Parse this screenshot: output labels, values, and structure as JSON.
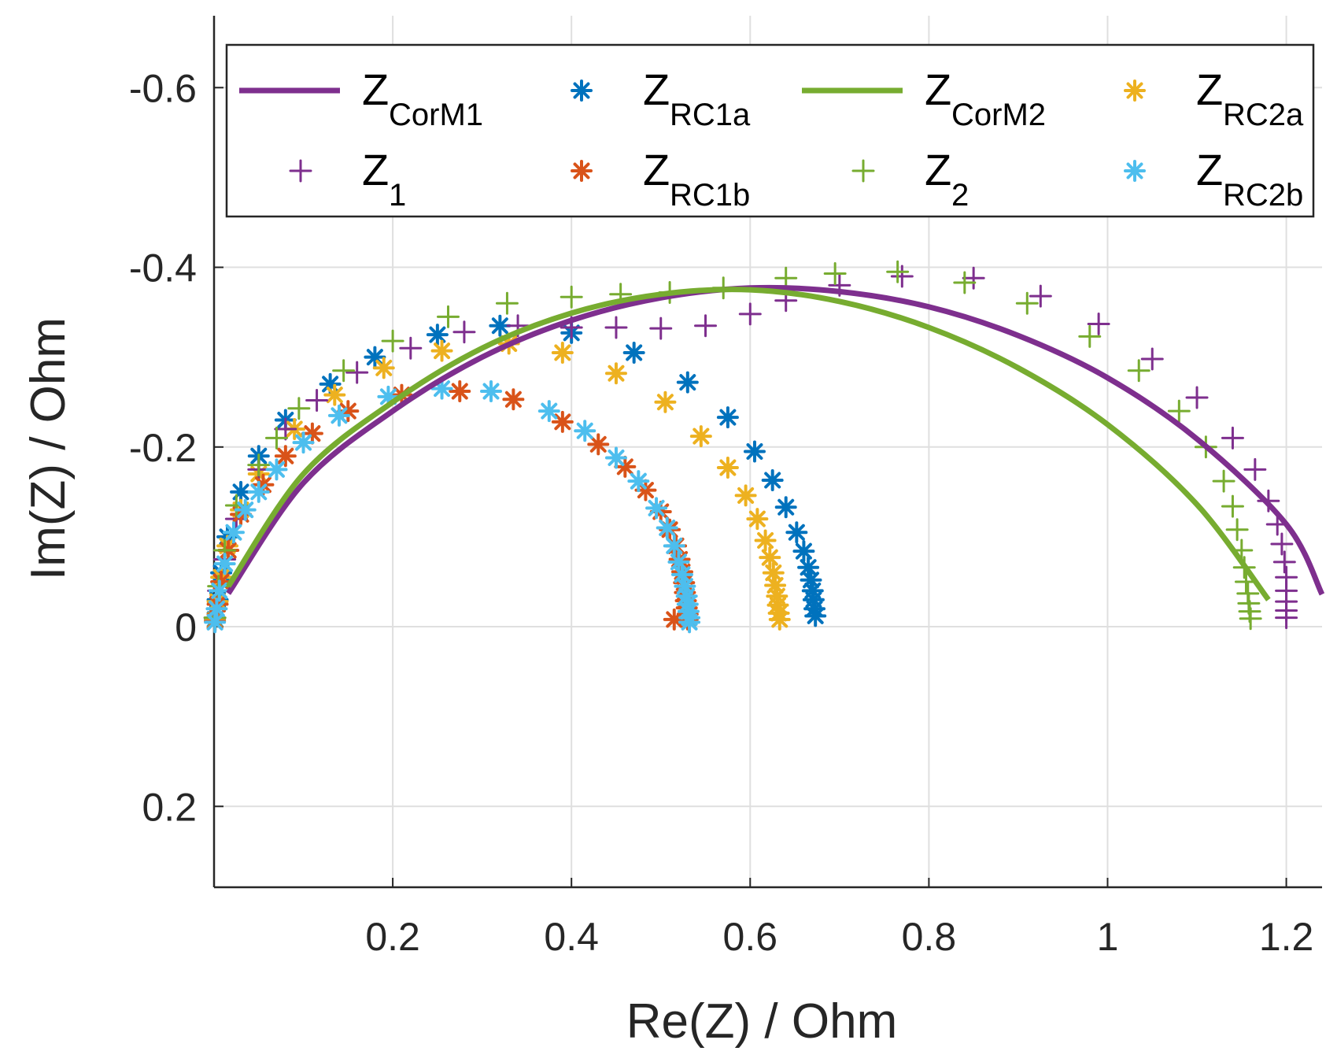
{
  "chart_data": {
    "type": "scatter",
    "xlabel": "Re(Z) / Ohm",
    "ylabel": "Im(Z) / Ohm",
    "xlim": [
      0,
      1.24
    ],
    "ylim": [
      -0.68,
      0.29
    ],
    "y_reversed": true,
    "grid": true,
    "legend_position": "top",
    "x_ticks": [
      {
        "value": 0.2,
        "label": "0.2"
      },
      {
        "value": 0.4,
        "label": "0.4"
      },
      {
        "value": 0.6,
        "label": "0.6"
      },
      {
        "value": 0.8,
        "label": "0.8"
      },
      {
        "value": 1.0,
        "label": "1"
      },
      {
        "value": 1.2,
        "label": "1.2"
      }
    ],
    "y_ticks": [
      {
        "value": -0.6,
        "label": "-0.6"
      },
      {
        "value": -0.4,
        "label": "-0.4"
      },
      {
        "value": -0.2,
        "label": "-0.2"
      },
      {
        "value": 0.0,
        "label": "0"
      },
      {
        "value": 0.2,
        "label": "0.2"
      }
    ],
    "series": [
      {
        "key": "CorM1",
        "legend_main": "Z",
        "legend_sub": "CorM1",
        "style": "line",
        "color": "#7E2F8E",
        "points": [
          [
            0.016,
            -0.037
          ],
          [
            0.1,
            -0.16
          ],
          [
            0.2,
            -0.24
          ],
          [
            0.3,
            -0.3
          ],
          [
            0.4,
            -0.341
          ],
          [
            0.5,
            -0.366
          ],
          [
            0.6,
            -0.377
          ],
          [
            0.7,
            -0.373
          ],
          [
            0.8,
            -0.356
          ],
          [
            0.9,
            -0.324
          ],
          [
            1.0,
            -0.277
          ],
          [
            1.1,
            -0.209
          ],
          [
            1.2,
            -0.114
          ],
          [
            1.24,
            -0.036
          ]
        ]
      },
      {
        "key": "RC1a",
        "legend_main": "Z",
        "legend_sub": "RC1a",
        "style": "asterisk",
        "color": "#0072BD",
        "points": [
          [
            0.001,
            -0.008
          ],
          [
            0.004,
            -0.03
          ],
          [
            0.008,
            -0.06
          ],
          [
            0.015,
            -0.1
          ],
          [
            0.03,
            -0.15
          ],
          [
            0.05,
            -0.19
          ],
          [
            0.08,
            -0.23
          ],
          [
            0.13,
            -0.27
          ],
          [
            0.18,
            -0.3
          ],
          [
            0.25,
            -0.325
          ],
          [
            0.32,
            -0.335
          ],
          [
            0.4,
            -0.327
          ],
          [
            0.47,
            -0.305
          ],
          [
            0.53,
            -0.272
          ],
          [
            0.575,
            -0.233
          ],
          [
            0.605,
            -0.195
          ],
          [
            0.625,
            -0.163
          ],
          [
            0.64,
            -0.133
          ],
          [
            0.652,
            -0.105
          ],
          [
            0.66,
            -0.084
          ],
          [
            0.665,
            -0.066
          ],
          [
            0.668,
            -0.052
          ],
          [
            0.67,
            -0.04
          ],
          [
            0.671,
            -0.03
          ],
          [
            0.672,
            -0.02
          ],
          [
            0.673,
            -0.012
          ]
        ]
      },
      {
        "key": "CorM2",
        "legend_main": "Z",
        "legend_sub": "CorM2",
        "style": "line",
        "color": "#77AC30",
        "points": [
          [
            0.016,
            -0.045
          ],
          [
            0.1,
            -0.17
          ],
          [
            0.2,
            -0.25
          ],
          [
            0.3,
            -0.31
          ],
          [
            0.4,
            -0.349
          ],
          [
            0.5,
            -0.37
          ],
          [
            0.6,
            -0.375
          ],
          [
            0.7,
            -0.362
          ],
          [
            0.8,
            -0.333
          ],
          [
            0.9,
            -0.288
          ],
          [
            1.0,
            -0.225
          ],
          [
            1.1,
            -0.136
          ],
          [
            1.18,
            -0.03
          ]
        ]
      },
      {
        "key": "RC2a",
        "legend_main": "Z",
        "legend_sub": "RC2a",
        "style": "asterisk",
        "color": "#EDB120",
        "points": [
          [
            0.001,
            -0.007
          ],
          [
            0.004,
            -0.028
          ],
          [
            0.008,
            -0.055
          ],
          [
            0.015,
            -0.09
          ],
          [
            0.03,
            -0.13
          ],
          [
            0.05,
            -0.17
          ],
          [
            0.09,
            -0.22
          ],
          [
            0.135,
            -0.258
          ],
          [
            0.19,
            -0.288
          ],
          [
            0.255,
            -0.307
          ],
          [
            0.33,
            -0.315
          ],
          [
            0.39,
            -0.305
          ],
          [
            0.45,
            -0.282
          ],
          [
            0.505,
            -0.25
          ],
          [
            0.545,
            -0.212
          ],
          [
            0.575,
            -0.177
          ],
          [
            0.595,
            -0.146
          ],
          [
            0.608,
            -0.12
          ],
          [
            0.617,
            -0.096
          ],
          [
            0.622,
            -0.077
          ],
          [
            0.626,
            -0.06
          ],
          [
            0.628,
            -0.046
          ],
          [
            0.63,
            -0.034
          ],
          [
            0.631,
            -0.024
          ],
          [
            0.632,
            -0.015
          ],
          [
            0.633,
            -0.008
          ]
        ]
      },
      {
        "key": "Z1",
        "legend_main": "Z",
        "legend_sub": "1",
        "style": "plus",
        "color": "#7E2F8E",
        "points": [
          [
            0.001,
            -0.01
          ],
          [
            0.005,
            -0.04
          ],
          [
            0.012,
            -0.075
          ],
          [
            0.025,
            -0.12
          ],
          [
            0.05,
            -0.175
          ],
          [
            0.08,
            -0.22
          ],
          [
            0.115,
            -0.252
          ],
          [
            0.16,
            -0.283
          ],
          [
            0.22,
            -0.31
          ],
          [
            0.28,
            -0.328
          ],
          [
            0.34,
            -0.335
          ],
          [
            0.4,
            -0.333
          ],
          [
            0.45,
            -0.333
          ],
          [
            0.5,
            -0.332
          ],
          [
            0.55,
            -0.335
          ],
          [
            0.6,
            -0.348
          ],
          [
            0.64,
            -0.363
          ],
          [
            0.7,
            -0.38
          ],
          [
            0.77,
            -0.39
          ],
          [
            0.85,
            -0.388
          ],
          [
            0.925,
            -0.368
          ],
          [
            0.99,
            -0.337
          ],
          [
            1.05,
            -0.298
          ],
          [
            1.1,
            -0.255
          ],
          [
            1.14,
            -0.21
          ],
          [
            1.165,
            -0.175
          ],
          [
            1.18,
            -0.14
          ],
          [
            1.19,
            -0.114
          ],
          [
            1.195,
            -0.092
          ],
          [
            1.198,
            -0.072
          ],
          [
            1.2,
            -0.055
          ],
          [
            1.2,
            -0.04
          ],
          [
            1.2,
            -0.028
          ],
          [
            1.2,
            -0.018
          ],
          [
            1.2,
            -0.01
          ]
        ]
      },
      {
        "key": "RC1b",
        "legend_main": "Z",
        "legend_sub": "RC1b",
        "style": "asterisk",
        "color": "#D95319",
        "points": [
          [
            0.001,
            -0.006
          ],
          [
            0.004,
            -0.025
          ],
          [
            0.008,
            -0.05
          ],
          [
            0.016,
            -0.085
          ],
          [
            0.03,
            -0.125
          ],
          [
            0.055,
            -0.158
          ],
          [
            0.08,
            -0.19
          ],
          [
            0.11,
            -0.215
          ],
          [
            0.15,
            -0.24
          ],
          [
            0.21,
            -0.258
          ],
          [
            0.275,
            -0.262
          ],
          [
            0.335,
            -0.253
          ],
          [
            0.39,
            -0.228
          ],
          [
            0.43,
            -0.203
          ],
          [
            0.46,
            -0.178
          ],
          [
            0.483,
            -0.152
          ],
          [
            0.5,
            -0.128
          ],
          [
            0.51,
            -0.108
          ],
          [
            0.517,
            -0.09
          ],
          [
            0.521,
            -0.075
          ],
          [
            0.524,
            -0.061
          ],
          [
            0.526,
            -0.049
          ],
          [
            0.527,
            -0.038
          ],
          [
            0.528,
            -0.029
          ],
          [
            0.529,
            -0.021
          ],
          [
            0.53,
            -0.014
          ],
          [
            0.53,
            -0.008
          ],
          [
            0.515,
            -0.008
          ]
        ]
      },
      {
        "key": "Z2",
        "legend_main": "Z",
        "legend_sub": "2",
        "style": "plus",
        "color": "#77AC30",
        "points": [
          [
            0.001,
            -0.01
          ],
          [
            0.005,
            -0.045
          ],
          [
            0.012,
            -0.085
          ],
          [
            0.025,
            -0.135
          ],
          [
            0.05,
            -0.18
          ],
          [
            0.07,
            -0.21
          ],
          [
            0.095,
            -0.243
          ],
          [
            0.145,
            -0.285
          ],
          [
            0.2,
            -0.318
          ],
          [
            0.262,
            -0.345
          ],
          [
            0.328,
            -0.36
          ],
          [
            0.4,
            -0.367
          ],
          [
            0.455,
            -0.37
          ],
          [
            0.51,
            -0.372
          ],
          [
            0.57,
            -0.377
          ],
          [
            0.64,
            -0.388
          ],
          [
            0.695,
            -0.393
          ],
          [
            0.765,
            -0.395
          ],
          [
            0.84,
            -0.383
          ],
          [
            0.91,
            -0.36
          ],
          [
            0.98,
            -0.323
          ],
          [
            1.035,
            -0.285
          ],
          [
            1.08,
            -0.24
          ],
          [
            1.11,
            -0.2
          ],
          [
            1.13,
            -0.162
          ],
          [
            1.14,
            -0.134
          ],
          [
            1.145,
            -0.108
          ],
          [
            1.15,
            -0.085
          ],
          [
            1.153,
            -0.066
          ],
          [
            1.155,
            -0.05
          ],
          [
            1.157,
            -0.037
          ],
          [
            1.158,
            -0.026
          ],
          [
            1.159,
            -0.017
          ],
          [
            1.16,
            -0.009
          ]
        ]
      },
      {
        "key": "RC2b",
        "legend_main": "Z",
        "legend_sub": "RC2b",
        "style": "asterisk",
        "color": "#4DBEEE",
        "points": [
          [
            0.001,
            -0.005
          ],
          [
            0.003,
            -0.02
          ],
          [
            0.006,
            -0.04
          ],
          [
            0.012,
            -0.07
          ],
          [
            0.022,
            -0.105
          ],
          [
            0.035,
            -0.13
          ],
          [
            0.05,
            -0.15
          ],
          [
            0.07,
            -0.175
          ],
          [
            0.1,
            -0.205
          ],
          [
            0.14,
            -0.235
          ],
          [
            0.195,
            -0.256
          ],
          [
            0.255,
            -0.265
          ],
          [
            0.31,
            -0.262
          ],
          [
            0.375,
            -0.24
          ],
          [
            0.415,
            -0.218
          ],
          [
            0.45,
            -0.188
          ],
          [
            0.475,
            -0.162
          ],
          [
            0.495,
            -0.132
          ],
          [
            0.507,
            -0.11
          ],
          [
            0.515,
            -0.09
          ],
          [
            0.52,
            -0.072
          ],
          [
            0.524,
            -0.058
          ],
          [
            0.527,
            -0.045
          ],
          [
            0.529,
            -0.034
          ],
          [
            0.53,
            -0.025
          ],
          [
            0.531,
            -0.017
          ],
          [
            0.532,
            -0.01
          ],
          [
            0.532,
            -0.005
          ]
        ]
      }
    ]
  }
}
